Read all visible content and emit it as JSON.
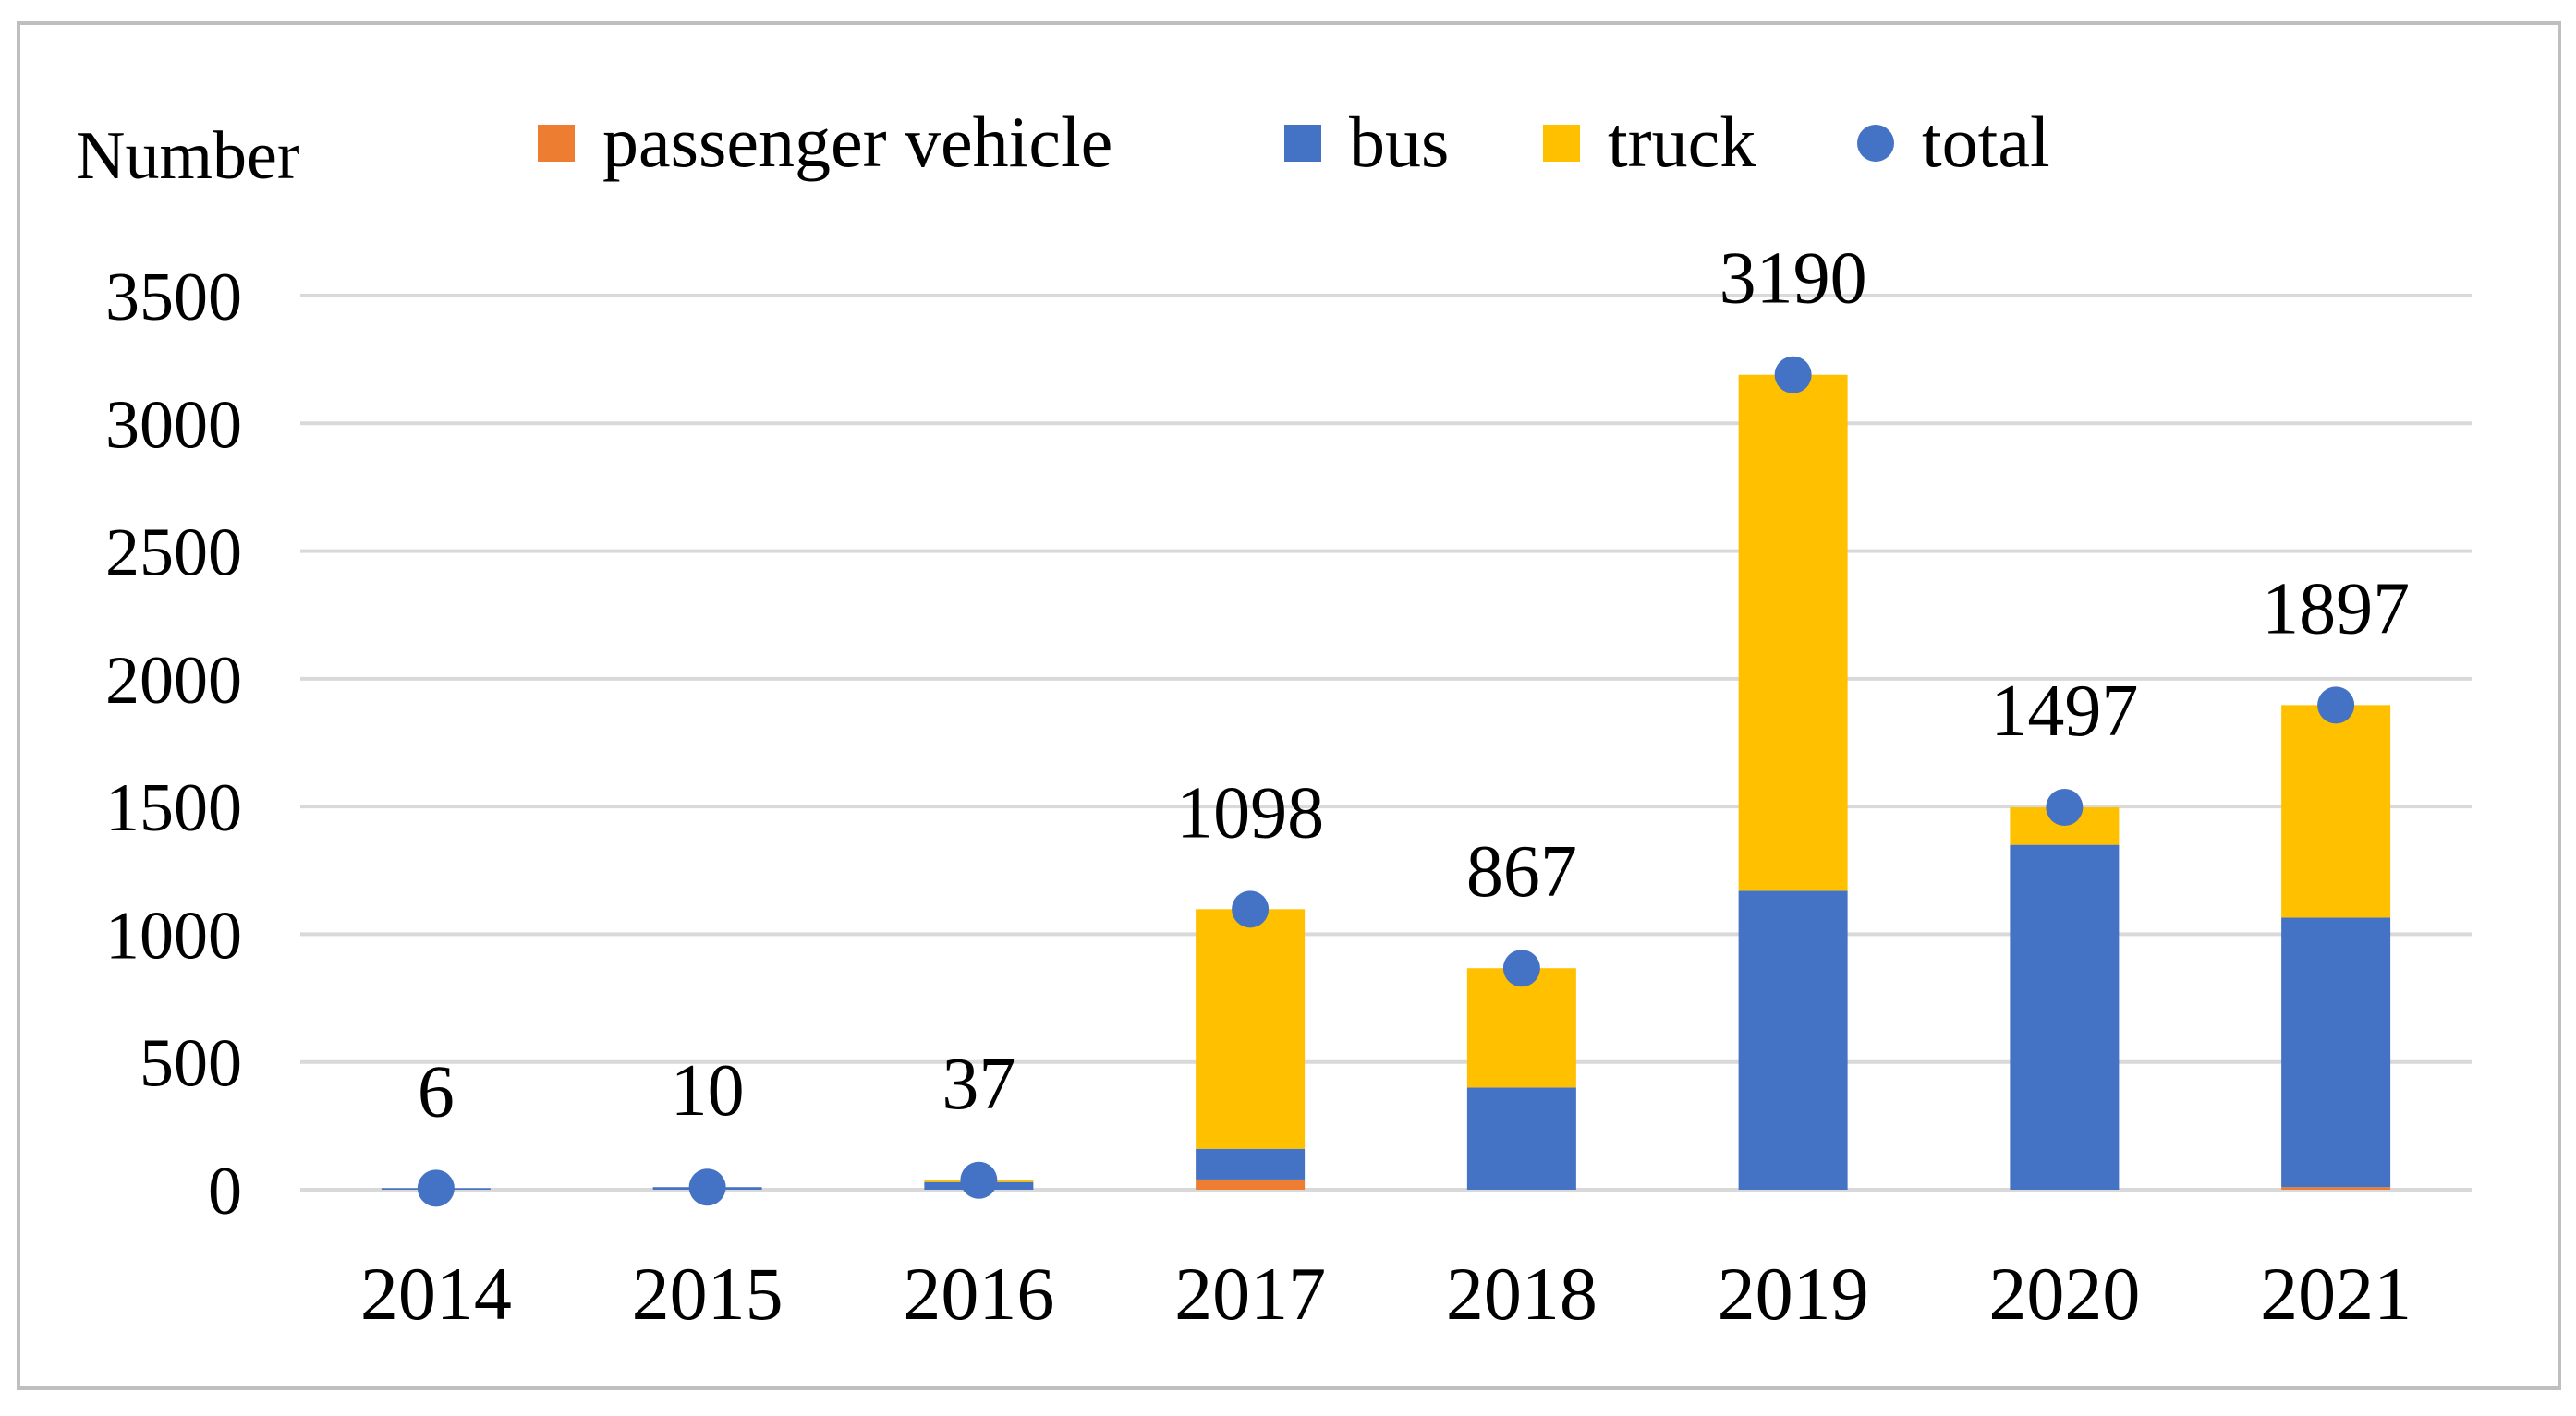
{
  "chart_data": {
    "type": "bar",
    "stacked": true,
    "ylabel": "Number",
    "xlabel": "",
    "categories": [
      "2014",
      "2015",
      "2016",
      "2017",
      "2018",
      "2019",
      "2020",
      "2021"
    ],
    "series": [
      {
        "name": "passenger vehicle",
        "color": "#ED7D31",
        "values": [
          0,
          0,
          0,
          40,
          0,
          0,
          0,
          10
        ]
      },
      {
        "name": "bus",
        "color": "#4472C4",
        "values": [
          6,
          10,
          30,
          120,
          400,
          1170,
          1350,
          1055
        ]
      },
      {
        "name": "truck",
        "color": "#FFC000",
        "values": [
          0,
          0,
          7,
          938,
          467,
          2020,
          147,
          832
        ]
      }
    ],
    "total": {
      "name": "total",
      "color": "#4472C4",
      "values": [
        6,
        10,
        37,
        1098,
        867,
        3190,
        1497,
        1897
      ]
    },
    "ylim": [
      0,
      3500
    ],
    "yticks": [
      0,
      500,
      1000,
      1500,
      2000,
      2500,
      3000,
      3500
    ],
    "grid": true,
    "legend_position": "top"
  }
}
